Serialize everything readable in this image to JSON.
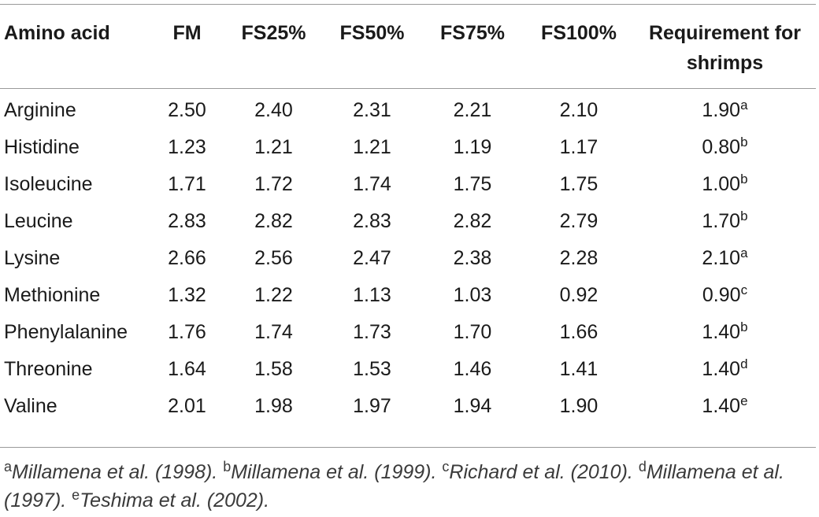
{
  "table": {
    "headers": [
      "Amino acid",
      "FM",
      "FS25%",
      "FS50%",
      "FS75%",
      "FS100%",
      "Requirement for shrimps"
    ],
    "rows": [
      {
        "name": "Arginine",
        "values": [
          "2.50",
          "2.40",
          "2.31",
          "2.21",
          "2.10"
        ],
        "req": "1.90",
        "ref": "a"
      },
      {
        "name": "Histidine",
        "values": [
          "1.23",
          "1.21",
          "1.21",
          "1.19",
          "1.17"
        ],
        "req": "0.80",
        "ref": "b"
      },
      {
        "name": "Isoleucine",
        "values": [
          "1.71",
          "1.72",
          "1.74",
          "1.75",
          "1.75"
        ],
        "req": "1.00",
        "ref": "b"
      },
      {
        "name": "Leucine",
        "values": [
          "2.83",
          "2.82",
          "2.83",
          "2.82",
          "2.79"
        ],
        "req": "1.70",
        "ref": "b"
      },
      {
        "name": "Lysine",
        "values": [
          "2.66",
          "2.56",
          "2.47",
          "2.38",
          "2.28"
        ],
        "req": "2.10",
        "ref": "a"
      },
      {
        "name": "Methionine",
        "values": [
          "1.32",
          "1.22",
          "1.13",
          "1.03",
          "0.92"
        ],
        "req": "0.90",
        "ref": "c"
      },
      {
        "name": "Phenylalanine",
        "values": [
          "1.76",
          "1.74",
          "1.73",
          "1.70",
          "1.66"
        ],
        "req": "1.40",
        "ref": "b"
      },
      {
        "name": "Threonine",
        "values": [
          "1.64",
          "1.58",
          "1.53",
          "1.46",
          "1.41"
        ],
        "req": "1.40",
        "ref": "d"
      },
      {
        "name": "Valine",
        "values": [
          "2.01",
          "1.98",
          "1.97",
          "1.94",
          "1.90"
        ],
        "req": "1.40",
        "ref": "e"
      }
    ]
  },
  "footnotes": [
    {
      "mark": "a",
      "text": "Millamena et al. (1998)."
    },
    {
      "mark": "b",
      "text": "Millamena et al. (1999)."
    },
    {
      "mark": "c",
      "text": "Richard et al. (2010)."
    },
    {
      "mark": "d",
      "text": "Millamena et al. (1997)."
    },
    {
      "mark": "e",
      "text": "Teshima et al. (2002)."
    }
  ]
}
